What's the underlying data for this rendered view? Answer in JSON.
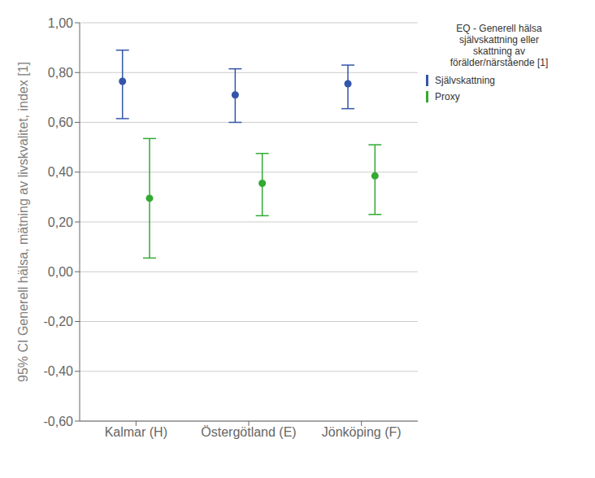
{
  "chart_data": {
    "type": "scatter",
    "categories": [
      "Kalmar (H)",
      "Östergötland (E)",
      "Jönköping (F)"
    ],
    "ylabel": "95% CI Generell hälsa, mätning av livskvalitet, index [1]",
    "legend_title": "EQ - Generell hälsa\nsjälvskattning eller\nskattning av\nförälder/närstående [1]",
    "series": [
      {
        "name": "Självskattning",
        "color": "#3355aa",
        "values": [
          0.765,
          0.71,
          0.755
        ],
        "ci_low": [
          0.615,
          0.6,
          0.655
        ],
        "ci_high": [
          0.89,
          0.815,
          0.83
        ]
      },
      {
        "name": "Proxy",
        "color": "#33aa33",
        "values": [
          0.295,
          0.355,
          0.385
        ],
        "ci_low": [
          0.055,
          0.225,
          0.23
        ],
        "ci_high": [
          0.535,
          0.475,
          0.51
        ]
      }
    ],
    "ylim": [
      -0.6,
      1.0
    ],
    "yticks": [
      {
        "value": -0.6,
        "label": "-0,60"
      },
      {
        "value": -0.4,
        "label": "-0,40"
      },
      {
        "value": -0.2,
        "label": "-0,20"
      },
      {
        "value": 0.0,
        "label": "0,00"
      },
      {
        "value": 0.2,
        "label": "0,20"
      },
      {
        "value": 0.4,
        "label": "0,40"
      },
      {
        "value": 0.6,
        "label": "0,60"
      },
      {
        "value": 0.8,
        "label": "0,80"
      },
      {
        "value": 1.0,
        "label": "1,00"
      }
    ],
    "grid": "y",
    "legend": "right",
    "marker": "circle"
  }
}
